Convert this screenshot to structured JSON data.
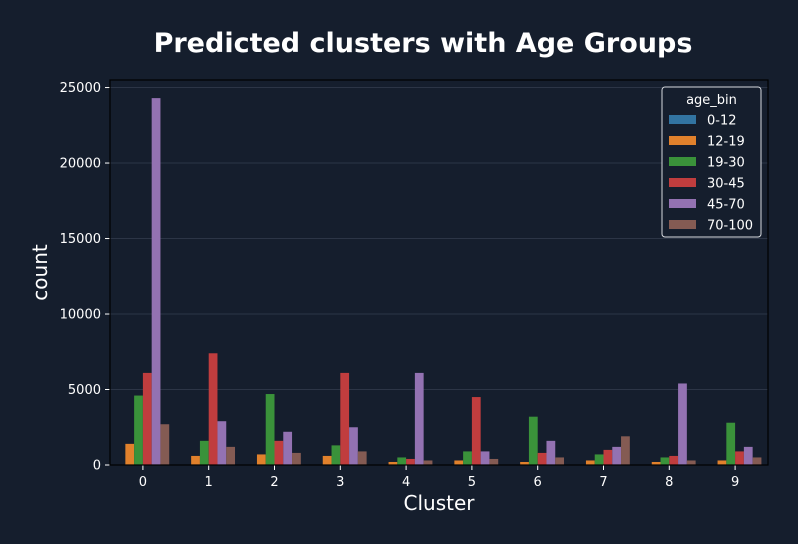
{
  "chart_data": {
    "type": "bar",
    "title": "Predicted clusters with Age Groups",
    "xlabel": "Cluster",
    "ylabel": "count",
    "categories": [
      "0",
      "1",
      "2",
      "3",
      "4",
      "5",
      "6",
      "7",
      "8",
      "9"
    ],
    "ylim": [
      0,
      25500
    ],
    "yticks": [
      0,
      5000,
      10000,
      15000,
      20000,
      25000
    ],
    "grid": true,
    "legend": {
      "title": "age_bin",
      "position": "top-right"
    },
    "series": [
      {
        "name": "0-12",
        "color": "#3274a1",
        "values": [
          0,
          0,
          0,
          0,
          0,
          0,
          0,
          0,
          0,
          0
        ]
      },
      {
        "name": "12-19",
        "color": "#e1812c",
        "values": [
          1400,
          600,
          700,
          600,
          200,
          300,
          200,
          300,
          200,
          300
        ]
      },
      {
        "name": "19-30",
        "color": "#3a923a",
        "values": [
          4600,
          1600,
          4700,
          1300,
          500,
          900,
          3200,
          700,
          500,
          2800
        ]
      },
      {
        "name": "30-45",
        "color": "#c03d3e",
        "values": [
          6100,
          7400,
          1600,
          6100,
          400,
          4500,
          800,
          1000,
          600,
          900
        ]
      },
      {
        "name": "45-70",
        "color": "#9372b2",
        "values": [
          24300,
          2900,
          2200,
          2500,
          6100,
          900,
          1600,
          1200,
          5400,
          1200
        ]
      },
      {
        "name": "70-100",
        "color": "#845b53",
        "values": [
          2700,
          1200,
          800,
          900,
          300,
          400,
          500,
          1900,
          300,
          500
        ]
      }
    ]
  },
  "colors": {
    "background": "#151e2d",
    "axes_background": "#151e2d",
    "grid": "#2c3546",
    "text": "#ffffff",
    "legend_background": "#151e2d",
    "legend_border": "#d8dbe0"
  }
}
